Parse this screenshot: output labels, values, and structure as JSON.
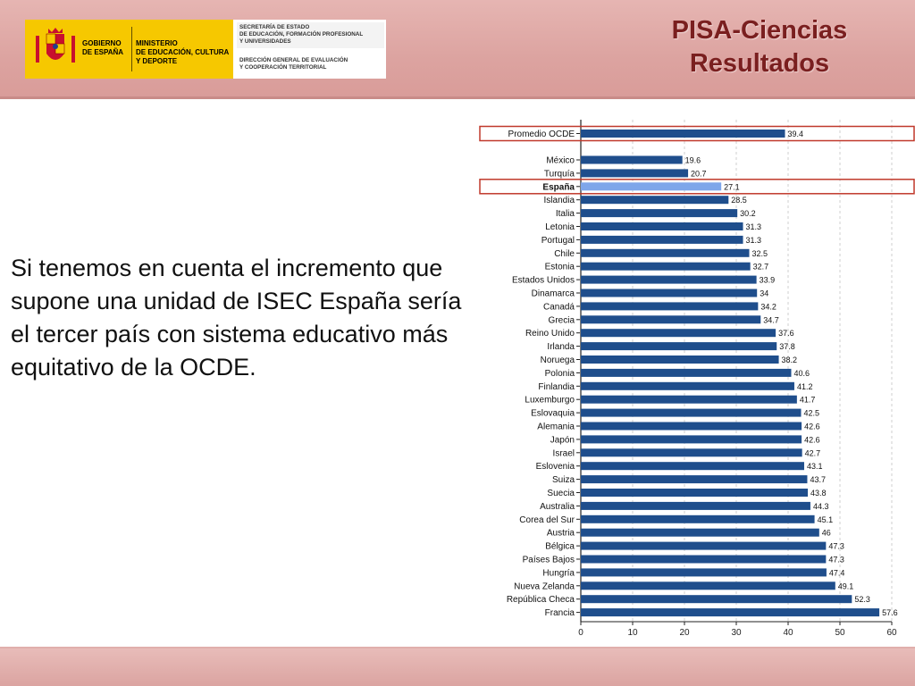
{
  "header": {
    "title_line1": "PISA-Ciencias",
    "title_line2": "Resultados",
    "logo": {
      "gobierno_line1": "GOBIERNO",
      "gobierno_line2": "DE ESPAÑA",
      "ministerio_line1": "MINISTERIO",
      "ministerio_line2": "DE EDUCACIÓN, CULTURA",
      "ministerio_line3": "Y DEPORTE",
      "secretaria_line1": "SECRETARÍA DE ESTADO",
      "secretaria_line2": "DE EDUCACIÓN, FORMACIÓN PROFESIONAL",
      "secretaria_line3": "Y UNIVERSIDADES",
      "direccion_line1": "DIRECCIÓN GENERAL DE EVALUACIÓN",
      "direccion_line2": "Y COOPERACIÓN TERRITORIAL"
    }
  },
  "body_text": "Si tenemos en cuenta el incremento que supone una unidad de ISEC España sería el tercer país con sistema educativo más equitativo de la OCDE.",
  "chart_data": {
    "type": "bar",
    "orientation": "horizontal",
    "title": "",
    "xlabel": "",
    "ylabel": "",
    "xlim": [
      0,
      60
    ],
    "xticks": [
      "0",
      "10",
      "20",
      "30",
      "40",
      "50",
      "60"
    ],
    "grid": true,
    "categories": [
      "Promedio OCDE",
      "México",
      "Turquía",
      "España",
      "Islandia",
      "Italia",
      "Letonia",
      "Portugal",
      "Chile",
      "Estonia",
      "Estados Unidos",
      "Dinamarca",
      "Canadá",
      "Grecia",
      "Reino Unido",
      "Irlanda",
      "Noruega",
      "Polonia",
      "Finlandia",
      "Luxemburgo",
      "Eslovaquia",
      "Alemania",
      "Japón",
      "Israel",
      "Eslovenia",
      "Suiza",
      "Suecia",
      "Australia",
      "Corea del Sur",
      "Austria",
      "Bélgica",
      "Países Bajos",
      "Hungría",
      "Nueva Zelanda",
      "República Checa",
      "Francia"
    ],
    "values": [
      39.4,
      19.6,
      20.7,
      27.1,
      28.5,
      30.2,
      31.3,
      31.3,
      32.5,
      32.7,
      33.9,
      34,
      34.2,
      34.7,
      37.6,
      37.8,
      38.2,
      40.6,
      41.2,
      41.7,
      42.5,
      42.6,
      42.6,
      42.7,
      43.1,
      43.7,
      43.8,
      44.3,
      45.1,
      46,
      47.3,
      47.3,
      47.4,
      49.1,
      52.3,
      57.6
    ],
    "value_labels": [
      "39.4",
      "19.6",
      "20.7",
      "27.1",
      "28.5",
      "30.2",
      "31.3",
      "31.3",
      "32.5",
      "32.7",
      "33.9",
      "34",
      "34.2",
      "34.7",
      "37.6",
      "37.8",
      "38.2",
      "40.6",
      "41.2",
      "41.7",
      "42.5",
      "42.6",
      "42.6",
      "42.7",
      "43.1",
      "43.7",
      "43.8",
      "44.3",
      "45.1",
      "46",
      "47.3",
      "47.3",
      "47.4",
      "49.1",
      "52.3",
      "57.6"
    ],
    "highlighted": [
      "Promedio OCDE",
      "España"
    ],
    "colors": {
      "bar": "#1f4e8c",
      "highlight_bar": "#7ea6ea",
      "highlight_box": "#c0392b",
      "grid": "#cfcfcf"
    }
  }
}
